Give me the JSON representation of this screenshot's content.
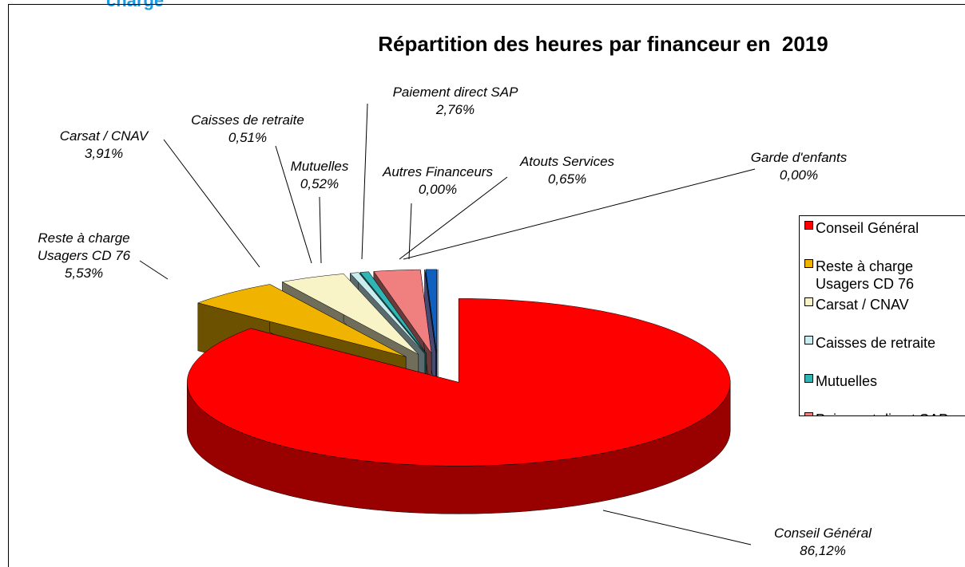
{
  "heading": "charge",
  "chart_data": {
    "type": "pie",
    "title": "Répartition des heures par financeur en  2019",
    "categories": [
      "Conseil Général",
      "Reste à charge Usagers CD 76",
      "Carsat / CNAV",
      "Caisses de retraite",
      "Mutuelles",
      "Paiement direct SAP",
      "Autres Financeurs",
      "Atouts Services",
      "Garde d'enfants"
    ],
    "values": [
      86.12,
      5.53,
      3.91,
      0.51,
      0.52,
      2.76,
      0,
      0.65,
      0
    ],
    "value_labels": [
      "86,12%",
      "5,53%",
      "3,91%",
      "0,51%",
      "0,52%",
      "2,76%",
      "0,00%",
      "0,65%",
      "0,00%"
    ],
    "colors": [
      "#ff0000",
      "#f0b400",
      "#f8f4c8",
      "#c8ecf0",
      "#30b4b4",
      "#f08080",
      "#a0a0ff",
      "#1060c0",
      "#c0c0c0"
    ],
    "legend": "right"
  }
}
